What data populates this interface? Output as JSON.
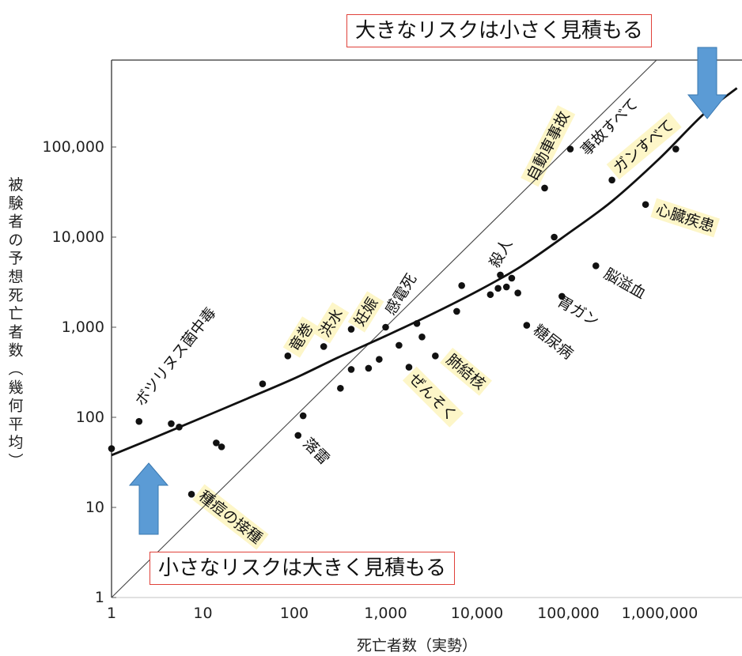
{
  "chart_data": {
    "type": "scatter",
    "xlabel": "死亡者数（実勢）",
    "ylabel": "被験者の予想死亡者数（幾何平均）",
    "x_scale": "log",
    "y_scale": "log",
    "xlim": [
      1,
      7000000
    ],
    "ylim": [
      1,
      1000000
    ],
    "x_ticks": [
      {
        "v": 1,
        "label": "1"
      },
      {
        "v": 10,
        "label": "10"
      },
      {
        "v": 100,
        "label": "100"
      },
      {
        "v": 1000,
        "label": "1,000"
      },
      {
        "v": 10000,
        "label": "10,000"
      },
      {
        "v": 100000,
        "label": "100,000"
      },
      {
        "v": 1000000,
        "label": "1,000,000"
      }
    ],
    "y_ticks": [
      {
        "v": 1,
        "label": "1"
      },
      {
        "v": 10,
        "label": "10"
      },
      {
        "v": 100,
        "label": "100"
      },
      {
        "v": 1000,
        "label": "1,000"
      },
      {
        "v": 10000,
        "label": "10,000"
      },
      {
        "v": 100000,
        "label": "100,000"
      }
    ],
    "points": [
      {
        "x": 1,
        "y": 45
      },
      {
        "x": 2,
        "y": 90
      },
      {
        "x": 4.5,
        "y": 85
      },
      {
        "x": 5.5,
        "y": 78
      },
      {
        "x": 7.5,
        "y": 14
      },
      {
        "x": 14,
        "y": 52
      },
      {
        "x": 16,
        "y": 47
      },
      {
        "x": 45,
        "y": 235
      },
      {
        "x": 85,
        "y": 480
      },
      {
        "x": 110,
        "y": 63
      },
      {
        "x": 125,
        "y": 104
      },
      {
        "x": 210,
        "y": 610
      },
      {
        "x": 320,
        "y": 210
      },
      {
        "x": 420,
        "y": 950
      },
      {
        "x": 420,
        "y": 340
      },
      {
        "x": 650,
        "y": 350
      },
      {
        "x": 850,
        "y": 440
      },
      {
        "x": 1000,
        "y": 1000
      },
      {
        "x": 1400,
        "y": 630
      },
      {
        "x": 1800,
        "y": 360
      },
      {
        "x": 2200,
        "y": 1100
      },
      {
        "x": 2500,
        "y": 780
      },
      {
        "x": 3500,
        "y": 480
      },
      {
        "x": 6000,
        "y": 1500
      },
      {
        "x": 6800,
        "y": 2900
      },
      {
        "x": 14000,
        "y": 2300
      },
      {
        "x": 17000,
        "y": 2700
      },
      {
        "x": 18000,
        "y": 3800
      },
      {
        "x": 21000,
        "y": 2800
      },
      {
        "x": 24000,
        "y": 3500
      },
      {
        "x": 28000,
        "y": 2400
      },
      {
        "x": 35000,
        "y": 1050
      },
      {
        "x": 55000,
        "y": 35000
      },
      {
        "x": 70000,
        "y": 10000
      },
      {
        "x": 85000,
        "y": 2200
      },
      {
        "x": 105000,
        "y": 95000
      },
      {
        "x": 200000,
        "y": 4800
      },
      {
        "x": 300000,
        "y": 43000
      },
      {
        "x": 700000,
        "y": 23000
      },
      {
        "x": 1500000,
        "y": 95000
      }
    ],
    "reference_line": {
      "from": [
        1,
        1
      ],
      "to": [
        1000000,
        1000000
      ]
    },
    "fit_curve": [
      [
        1,
        38
      ],
      [
        3,
        60
      ],
      [
        10,
        100
      ],
      [
        30,
        160
      ],
      [
        100,
        270
      ],
      [
        300,
        460
      ],
      [
        1000,
        800
      ],
      [
        3000,
        1350
      ],
      [
        10000,
        2500
      ],
      [
        30000,
        4700
      ],
      [
        100000,
        11000
      ],
      [
        300000,
        25000
      ],
      [
        1000000,
        75000
      ],
      [
        3000000,
        230000
      ],
      [
        7000000,
        450000
      ]
    ],
    "annotations": [
      {
        "text": "ボツリヌス菌中毒"
      },
      {
        "text": "竜巻"
      },
      {
        "text": "洪水"
      },
      {
        "text": "妊娠"
      },
      {
        "text": "感電死"
      },
      {
        "text": "落雷"
      },
      {
        "text": "種痘の接種"
      },
      {
        "text": "ぜんそく"
      },
      {
        "text": "肺結核"
      },
      {
        "text": "殺人"
      },
      {
        "text": "自動車事故"
      },
      {
        "text": "事故すべて"
      },
      {
        "text": "ガンすべて"
      },
      {
        "text": "心臓疾患"
      },
      {
        "text": "脳溢血"
      },
      {
        "text": "胃ガン"
      },
      {
        "text": "糖尿病"
      }
    ],
    "callouts": {
      "top": "大きなリスクは小さく見積もる",
      "bottom": "小さなリスクは大きく見積もる"
    },
    "colors": {
      "arrow": "#5b9bd5",
      "callout_border": "#e0413a",
      "highlight": "#fdf6c8"
    }
  }
}
